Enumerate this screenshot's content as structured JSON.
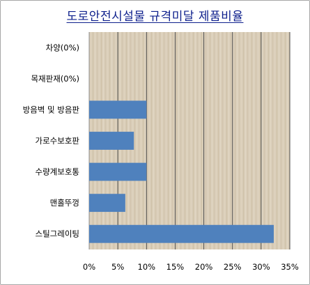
{
  "chart_data": {
    "type": "bar",
    "orientation": "horizontal",
    "title": "도로안전시설물 규격미달 제품비율",
    "xlabel": "",
    "ylabel": "",
    "xlim": [
      0,
      35
    ],
    "x_ticks": [
      0,
      5,
      10,
      15,
      20,
      25,
      30,
      35
    ],
    "tick_suffix": "%",
    "grid": true,
    "legend": "none",
    "categories": [
      "차양(0%)",
      "목재판재(0%)",
      "방음벽 및 방음판",
      "가로수보호판",
      "수량계보호통",
      "맨홀뚜껑",
      "스틸그레이팅"
    ],
    "values": [
      0,
      0,
      10,
      7.8,
      10,
      6.3,
      32.2
    ],
    "colors": {
      "bar": "#4f81bd",
      "title": "#0d1f8c",
      "plot_background": "#d9cdb8",
      "gridline": "#4d4d4d"
    }
  }
}
